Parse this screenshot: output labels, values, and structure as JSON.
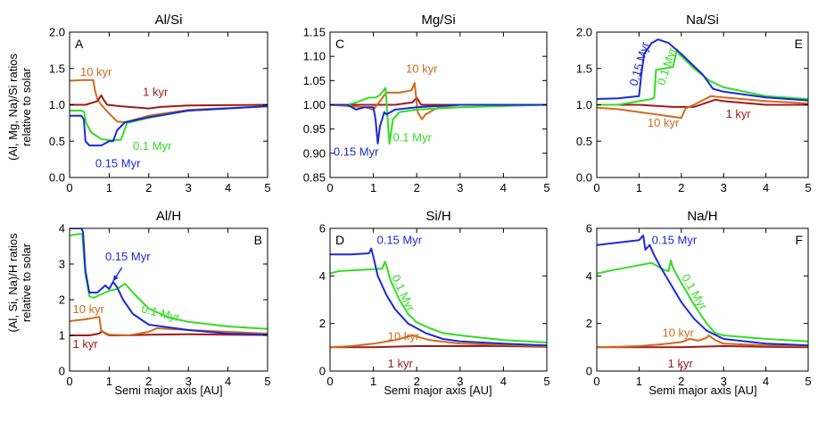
{
  "figure": {
    "xlabel": "Semi major axis [AU]",
    "ylabel_top": [
      "(Al, Mg, Na)/Si ratios",
      "relative to solar"
    ],
    "ylabel_bottom": [
      "(Al, Si, Na)/H ratios",
      "relative to solar"
    ]
  },
  "colors": {
    "1kyr": "#a01a1a",
    "10kyr": "#d2691e",
    "0.1Myr": "#33dd22",
    "0.15Myr": "#1a2ad8"
  },
  "chart_data": [
    {
      "type": "line",
      "panel": "A",
      "title": "Al/Si",
      "xlim": [
        0,
        5
      ],
      "ylim": [
        0,
        2
      ],
      "xticks": [
        "0",
        "1",
        "2",
        "3",
        "4",
        "5"
      ],
      "yticks": [
        "0.0",
        "0.5",
        "1.0",
        "1.5",
        "2.0"
      ],
      "series": [
        {
          "name": "10 kyr",
          "key": "10kyr",
          "x": [
            0,
            0.3,
            0.6,
            0.64,
            0.7,
            0.8,
            1.0,
            1.2,
            1.4,
            2.0,
            3.0,
            5.0
          ],
          "y": [
            1.33,
            1.34,
            1.34,
            1.2,
            1.08,
            1.0,
            0.88,
            0.77,
            0.76,
            0.85,
            0.93,
            0.98
          ]
        },
        {
          "name": "1 kyr",
          "key": "1kyr",
          "x": [
            0,
            0.4,
            0.7,
            0.8,
            0.86,
            0.95,
            1.3,
            2.0,
            2.3,
            3.0,
            5.0
          ],
          "y": [
            1.0,
            1.0,
            1.05,
            1.13,
            1.07,
            1.0,
            0.98,
            0.95,
            0.97,
            0.99,
            1.0
          ]
        },
        {
          "name": "0.1 Myr",
          "key": "0.1Myr",
          "x": [
            0,
            0.3,
            0.37,
            0.42,
            0.55,
            0.8,
            1.0,
            1.3,
            1.45,
            2.0,
            3.0,
            5.0
          ],
          "y": [
            0.92,
            0.92,
            0.9,
            0.75,
            0.62,
            0.53,
            0.51,
            0.52,
            0.75,
            0.82,
            0.92,
            0.98
          ]
        },
        {
          "name": "0.15 Myr",
          "key": "0.15Myr",
          "x": [
            0,
            0.3,
            0.36,
            0.4,
            0.5,
            0.8,
            1.0,
            1.1,
            1.2,
            1.4,
            2.0,
            3.0,
            5.0
          ],
          "y": [
            0.85,
            0.85,
            0.8,
            0.5,
            0.44,
            0.44,
            0.5,
            0.5,
            0.65,
            0.76,
            0.83,
            0.92,
            0.98
          ]
        }
      ],
      "labels": [
        {
          "text": "10 kyr",
          "key": "10kyr",
          "x": 0.27,
          "y": 1.4
        },
        {
          "text": "1 kyr",
          "key": "1kyr",
          "x": 1.85,
          "y": 1.12
        },
        {
          "text": "0.1 Myr",
          "key": "0.1Myr",
          "x": 1.6,
          "y": 0.38
        },
        {
          "text": "0.15 Myr",
          "key": "0.15Myr",
          "x": 0.65,
          "y": 0.14
        }
      ]
    },
    {
      "type": "line",
      "panel": "C",
      "title": "Mg/Si",
      "xlim": [
        0,
        5
      ],
      "ylim": [
        0.85,
        1.15
      ],
      "xticks": [
        "0",
        "1",
        "2",
        "3",
        "4",
        "5"
      ],
      "yticks": [
        "0.85",
        "0.90",
        "0.95",
        "1.00",
        "1.05",
        "1.10",
        "1.15"
      ],
      "series": [
        {
          "name": "1 kyr",
          "key": "1kyr",
          "x": [
            0,
            0.7,
            1.0,
            1.5,
            1.9,
            2.0,
            2.1,
            2.2,
            3.0,
            5.0
          ],
          "y": [
            1.0,
            1.0,
            1.0,
            1.0,
            1.005,
            1.015,
            1.0,
            1.0,
            1.0,
            1.0
          ]
        },
        {
          "name": "10 kyr",
          "key": "10kyr",
          "x": [
            0,
            0.8,
            1.0,
            1.3,
            1.6,
            1.88,
            1.95,
            2.02,
            2.12,
            2.2,
            2.5,
            3.0,
            5.0
          ],
          "y": [
            1.0,
            0.995,
            0.99,
            1.025,
            1.025,
            1.03,
            1.045,
            0.985,
            0.97,
            0.98,
            0.995,
            1.0,
            1.0
          ]
        },
        {
          "name": "0.1 Myr",
          "key": "0.1Myr",
          "x": [
            0,
            0.4,
            0.6,
            0.9,
            1.05,
            1.15,
            1.28,
            1.33,
            1.37,
            1.45,
            1.6,
            2.0,
            3.0,
            5.0
          ],
          "y": [
            1.0,
            1.0,
            1.005,
            1.015,
            1.015,
            1.02,
            1.035,
            0.97,
            0.92,
            0.97,
            0.985,
            0.99,
            0.995,
            1.0
          ]
        },
        {
          "name": "0.15 Myr",
          "key": "0.15Myr",
          "x": [
            0,
            0.4,
            0.6,
            0.8,
            1.0,
            1.05,
            1.1,
            1.15,
            1.25,
            1.3,
            1.5,
            2.0,
            3.0,
            5.0
          ],
          "y": [
            1.0,
            1.0,
            0.99,
            0.995,
            0.995,
            0.97,
            0.92,
            0.955,
            0.985,
            0.98,
            0.99,
            0.995,
            1.0,
            1.0
          ]
        }
      ],
      "labels": [
        {
          "text": "10 kyr",
          "key": "10kyr",
          "x": 1.75,
          "y": 1.066
        },
        {
          "text": "0.1 Myr",
          "key": "0.1Myr",
          "x": 1.45,
          "y": 0.925
        },
        {
          "text": "0.15 Myr",
          "key": "0.15Myr",
          "x": 0.08,
          "y": 0.895
        }
      ]
    },
    {
      "type": "line",
      "panel": "E",
      "title": "Na/Si",
      "xlim": [
        0,
        5
      ],
      "ylim": [
        0,
        2
      ],
      "xticks": [
        "0",
        "1",
        "2",
        "3",
        "4",
        "5"
      ],
      "yticks": [
        "0.0",
        "0.5",
        "1.0",
        "1.5",
        "2.0"
      ],
      "series": [
        {
          "name": "1 kyr",
          "key": "1kyr",
          "x": [
            0,
            1.0,
            1.8,
            2.3,
            2.8,
            3.0,
            4.0,
            5.0
          ],
          "y": [
            1.0,
            1.0,
            0.97,
            0.97,
            1.07,
            1.05,
            1.0,
            1.0
          ]
        },
        {
          "name": "10 kyr",
          "key": "10kyr",
          "x": [
            0,
            0.5,
            1.0,
            1.5,
            2.0,
            2.1,
            2.3,
            2.7,
            3.0,
            4.0,
            5.0
          ],
          "y": [
            0.96,
            0.94,
            0.9,
            0.86,
            0.82,
            0.95,
            1.0,
            1.12,
            1.1,
            1.05,
            1.02
          ]
        },
        {
          "name": "0.1 Myr",
          "key": "0.1Myr",
          "x": [
            0,
            0.5,
            1.0,
            1.3,
            1.36,
            1.4,
            1.8,
            1.9,
            1.95,
            2.3,
            2.7,
            3.0,
            4.0,
            5.0
          ],
          "y": [
            1.0,
            1.0,
            1.05,
            1.08,
            1.1,
            1.48,
            1.52,
            1.76,
            1.7,
            1.5,
            1.32,
            1.24,
            1.12,
            1.08
          ]
        },
        {
          "name": "0.15 Myr",
          "key": "0.15Myr",
          "x": [
            0,
            0.5,
            1.0,
            1.05,
            1.12,
            1.3,
            1.45,
            1.7,
            2.0,
            2.5,
            2.75,
            3.0,
            4.0,
            5.0
          ],
          "y": [
            1.08,
            1.09,
            1.12,
            1.4,
            1.7,
            1.85,
            1.9,
            1.85,
            1.7,
            1.42,
            1.22,
            1.18,
            1.1,
            1.06
          ]
        }
      ],
      "labels": [
        {
          "text": "1 kyr",
          "key": "1kyr",
          "x": 3.05,
          "y": 0.82
        },
        {
          "text": "10 kyr",
          "key": "10kyr",
          "x": 1.2,
          "y": 0.7
        },
        {
          "text": "0.1 Myr",
          "key": "0.1Myr",
          "x": 1.6,
          "y": 1.26,
          "rotate": -72
        },
        {
          "text": "0.15 Myr",
          "key": "0.15Myr",
          "x": 0.95,
          "y": 1.25,
          "rotate": -74
        }
      ]
    },
    {
      "type": "line",
      "panel": "B",
      "title": "Al/H",
      "xlim": [
        0,
        5
      ],
      "ylim": [
        0,
        4
      ],
      "xticks": [
        "0",
        "1",
        "2",
        "3",
        "4",
        "5"
      ],
      "yticks": [
        "0",
        "1",
        "2",
        "3",
        "4"
      ],
      "series": [
        {
          "name": "1 kyr",
          "key": "1kyr",
          "x": [
            0,
            0.5,
            0.75,
            0.82,
            0.9,
            1.0,
            1.5,
            2.0,
            3.0,
            4.0,
            5.0
          ],
          "y": [
            1.0,
            1.0,
            1.05,
            1.12,
            1.05,
            1.0,
            1.0,
            1.02,
            1.03,
            1.02,
            1.01
          ]
        },
        {
          "name": "10 kyr",
          "key": "10kyr",
          "x": [
            0,
            0.4,
            0.75,
            0.8,
            1.0,
            1.5,
            2.0,
            2.2,
            3.0,
            4.0,
            5.0
          ],
          "y": [
            1.4,
            1.45,
            1.52,
            1.12,
            1.02,
            1.0,
            1.1,
            1.2,
            1.15,
            1.1,
            1.05
          ]
        },
        {
          "name": "0.1 Myr",
          "key": "0.1Myr",
          "x": [
            0,
            0.3,
            0.32,
            0.4,
            0.5,
            0.6,
            0.8,
            1.0,
            1.2,
            1.4,
            1.6,
            2.0,
            2.5,
            3.0,
            4.0,
            5.0
          ],
          "y": [
            3.8,
            3.85,
            3.82,
            2.7,
            2.1,
            2.05,
            2.15,
            2.25,
            2.3,
            2.45,
            2.2,
            1.75,
            1.5,
            1.38,
            1.25,
            1.18
          ]
        },
        {
          "name": "0.15 Myr",
          "key": "0.15Myr",
          "x": [
            0,
            0.3,
            0.34,
            0.4,
            0.5,
            0.7,
            0.9,
            1.0,
            1.1,
            1.2,
            1.35,
            1.6,
            2.0,
            3.0,
            4.0,
            5.0
          ],
          "y": [
            4.0,
            4.0,
            3.9,
            2.8,
            2.2,
            2.2,
            2.4,
            2.3,
            2.5,
            2.35,
            2.0,
            1.6,
            1.3,
            1.15,
            1.05,
            1.02
          ]
        }
      ],
      "labels": [
        {
          "text": "0.15 Myr",
          "key": "0.15Myr",
          "x": 0.9,
          "y": 3.1
        },
        {
          "text": "0.1 Myr",
          "key": "0.1Myr",
          "x": 1.8,
          "y": 1.65,
          "rotate": 14
        },
        {
          "text": "10 kyr",
          "key": "10kyr",
          "x": 0.08,
          "y": 1.63
        },
        {
          "text": "1 kyr",
          "key": "1kyr",
          "x": 0.08,
          "y": 0.65
        }
      ],
      "arrow": {
        "key": "0.15Myr",
        "from": [
          1.32,
          2.9
        ],
        "to": [
          1.1,
          2.52
        ]
      }
    },
    {
      "type": "line",
      "panel": "D",
      "title": "Si/H",
      "xlim": [
        0,
        5
      ],
      "ylim": [
        0,
        6
      ],
      "xticks": [
        "0",
        "1",
        "2",
        "3",
        "4",
        "5"
      ],
      "yticks": [
        "0",
        "2",
        "4",
        "6"
      ],
      "series": [
        {
          "name": "1 kyr",
          "key": "1kyr",
          "x": [
            0,
            1.0,
            2.0,
            3.0,
            4.0,
            5.0
          ],
          "y": [
            1.0,
            1.0,
            1.05,
            1.05,
            1.05,
            1.02
          ]
        },
        {
          "name": "10 kyr",
          "key": "10kyr",
          "x": [
            0,
            0.5,
            1.0,
            1.5,
            1.9,
            2.0,
            2.3,
            3.0,
            4.0,
            5.0
          ],
          "y": [
            1.0,
            1.05,
            1.15,
            1.3,
            1.5,
            1.45,
            1.3,
            1.15,
            1.1,
            1.05
          ]
        },
        {
          "name": "0.1 Myr",
          "key": "0.1Myr",
          "x": [
            0,
            0.2,
            1.2,
            1.27,
            1.32,
            1.4,
            1.6,
            1.8,
            2.0,
            2.3,
            2.6,
            3.0,
            4.0,
            5.0
          ],
          "y": [
            4.1,
            4.2,
            4.3,
            4.6,
            4.3,
            3.8,
            3.0,
            2.4,
            2.05,
            1.8,
            1.6,
            1.5,
            1.3,
            1.2
          ]
        },
        {
          "name": "0.15 Myr",
          "key": "0.15Myr",
          "x": [
            0,
            0.5,
            0.9,
            0.95,
            1.0,
            1.1,
            1.3,
            1.5,
            1.8,
            2.2,
            2.6,
            3.0,
            4.0,
            5.0
          ],
          "y": [
            4.9,
            4.9,
            4.95,
            5.15,
            4.8,
            4.0,
            3.2,
            2.6,
            2.0,
            1.6,
            1.35,
            1.25,
            1.15,
            1.08
          ]
        }
      ],
      "labels": [
        {
          "text": "0.15 Myr",
          "key": "0.15Myr",
          "x": 1.08,
          "y": 5.35
        },
        {
          "text": "0.1 Myr",
          "key": "0.1Myr",
          "x": 1.42,
          "y": 3.95,
          "rotate": 65
        },
        {
          "text": "10 kyr",
          "key": "10kyr",
          "x": 1.33,
          "y": 1.3
        },
        {
          "text": "1 kyr",
          "key": "1kyr",
          "x": 1.33,
          "y": 0.15
        }
      ]
    },
    {
      "type": "line",
      "panel": "F",
      "title": "Na/H",
      "xlim": [
        0,
        5
      ],
      "ylim": [
        0,
        6
      ],
      "xticks": [
        "0",
        "1",
        "2",
        "3",
        "4",
        "5"
      ],
      "yticks": [
        "0",
        "2",
        "4",
        "6"
      ],
      "series": [
        {
          "name": "1 kyr",
          "key": "1kyr",
          "x": [
            0,
            1.0,
            2.0,
            3.0,
            4.0,
            5.0
          ],
          "y": [
            1.0,
            1.0,
            1.0,
            1.05,
            1.02,
            1.0
          ]
        },
        {
          "name": "10 kyr",
          "key": "10kyr",
          "x": [
            0,
            0.5,
            1.0,
            1.5,
            2.0,
            2.2,
            2.4,
            2.6,
            2.65,
            2.8,
            3.0,
            4.0,
            5.0
          ],
          "y": [
            1.0,
            1.02,
            1.05,
            1.12,
            1.22,
            1.35,
            1.28,
            1.4,
            1.5,
            1.3,
            1.15,
            1.08,
            1.05
          ]
        },
        {
          "name": "0.1 Myr",
          "key": "0.1Myr",
          "x": [
            0,
            0.4,
            1.0,
            1.3,
            1.6,
            1.7,
            1.75,
            1.8,
            2.0,
            2.3,
            2.6,
            2.8,
            3.0,
            4.0,
            5.0
          ],
          "y": [
            4.1,
            4.25,
            4.45,
            4.55,
            4.25,
            4.2,
            4.65,
            4.35,
            3.7,
            2.8,
            2.0,
            1.6,
            1.5,
            1.35,
            1.25
          ]
        },
        {
          "name": "0.15 Myr",
          "key": "0.15Myr",
          "x": [
            0,
            0.5,
            1.0,
            1.1,
            1.15,
            1.25,
            1.35,
            1.5,
            1.7,
            2.0,
            2.3,
            2.6,
            3.0,
            4.0,
            5.0
          ],
          "y": [
            5.3,
            5.4,
            5.5,
            5.7,
            5.1,
            5.3,
            4.9,
            4.4,
            3.8,
            2.9,
            2.2,
            1.7,
            1.35,
            1.15,
            1.08
          ]
        }
      ],
      "labels": [
        {
          "text": "0.15 Myr",
          "key": "0.15Myr",
          "x": 1.3,
          "y": 5.35
        },
        {
          "text": "0.1 Myr",
          "key": "0.1Myr",
          "x": 2.0,
          "y": 3.95,
          "rotate": 60
        },
        {
          "text": "10 kyr",
          "key": "10kyr",
          "x": 1.55,
          "y": 1.45
        },
        {
          "text": "1 kyr",
          "key": "1kyr",
          "x": 1.68,
          "y": 0.15
        }
      ]
    }
  ]
}
